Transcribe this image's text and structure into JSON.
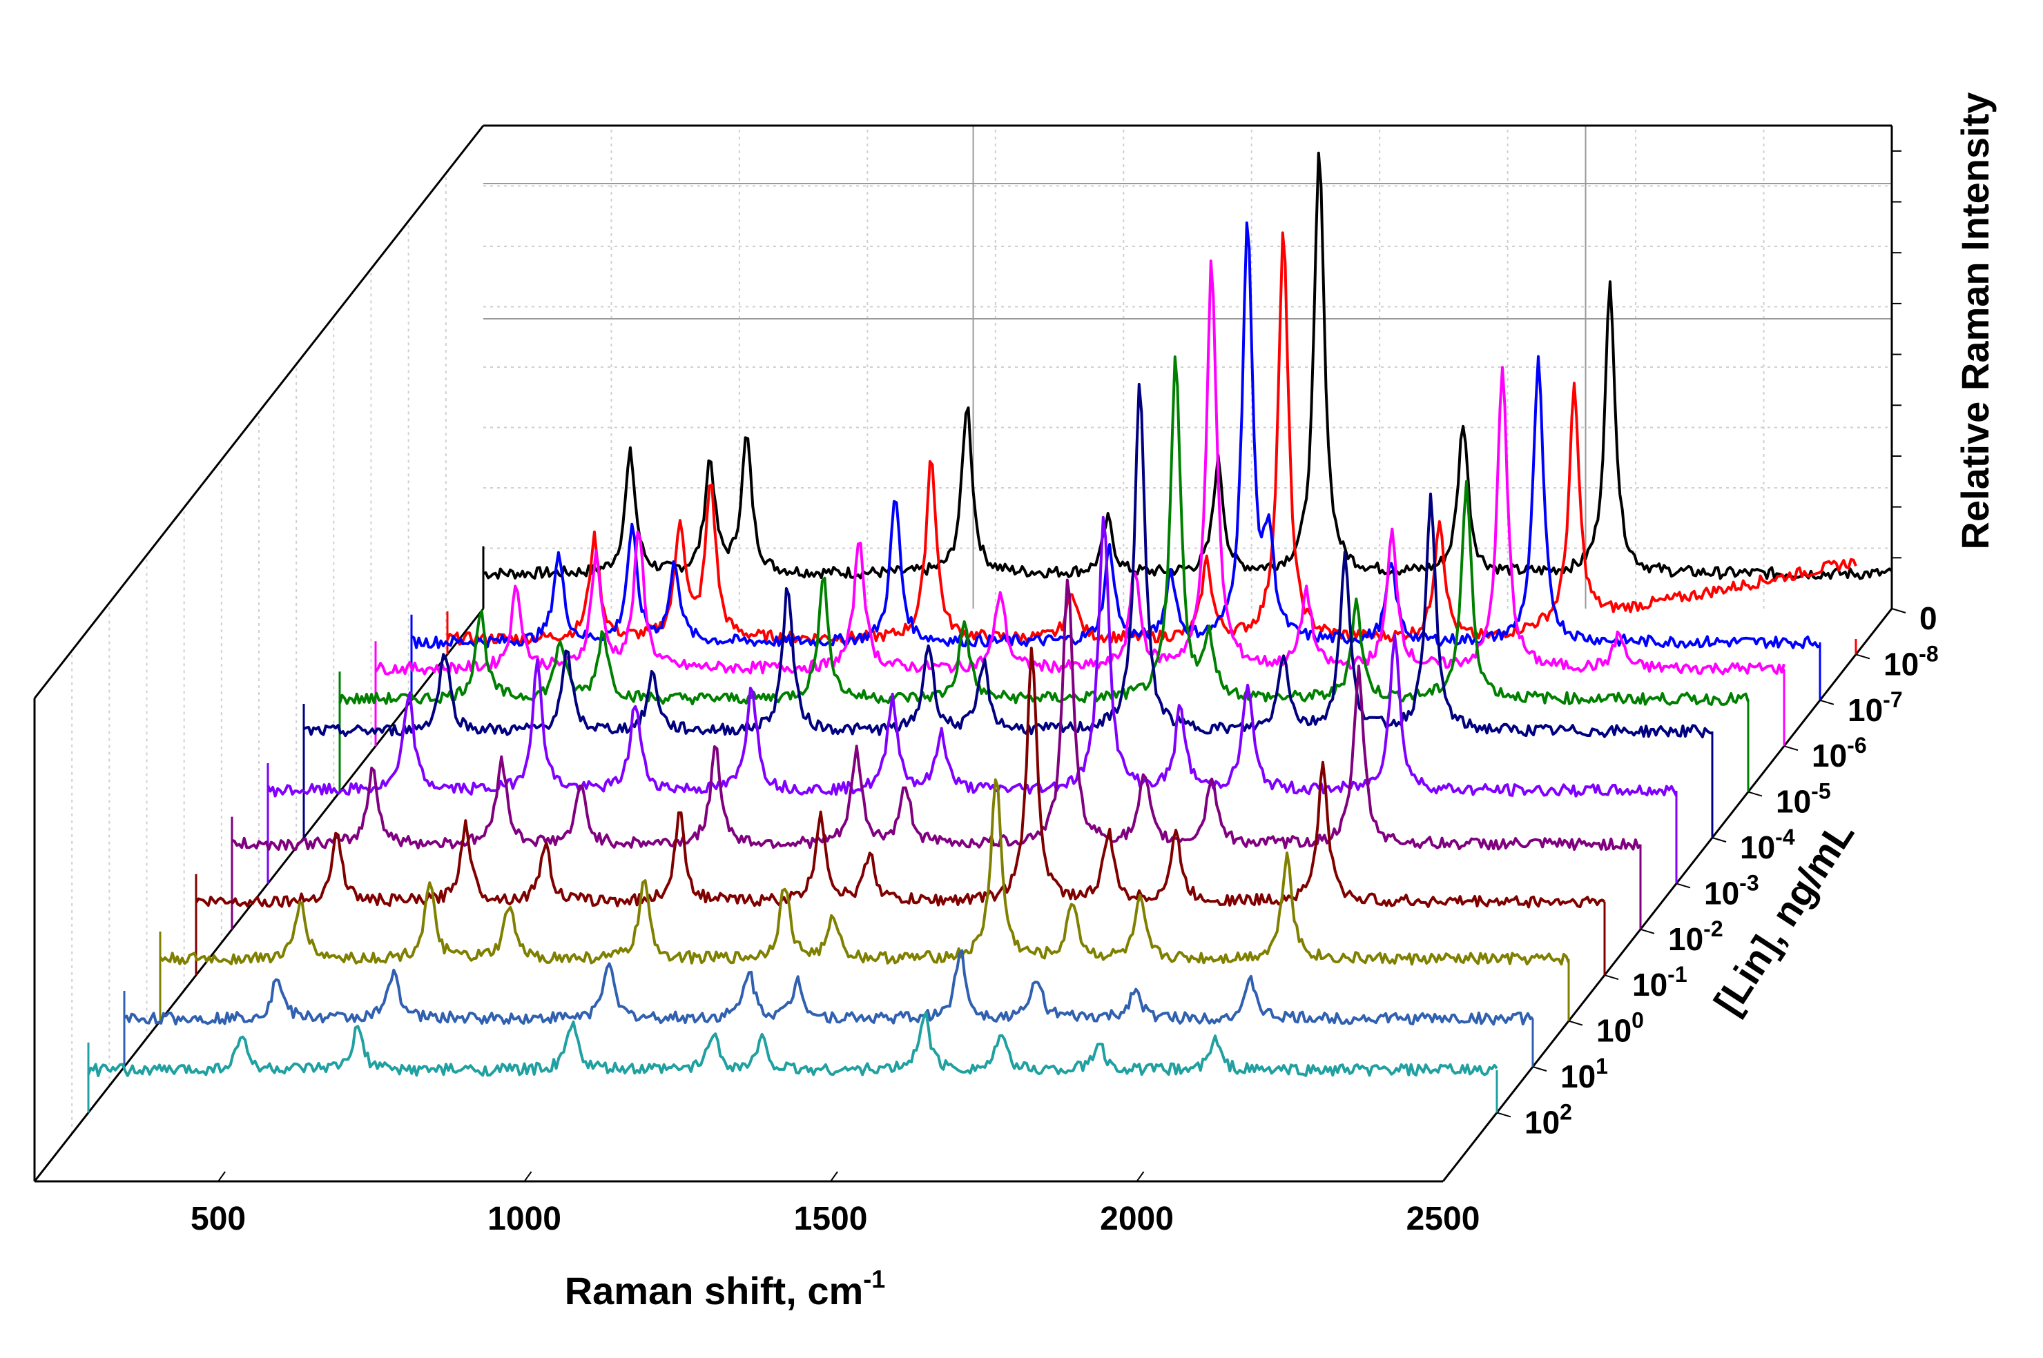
{
  "chart_data": {
    "type": "line",
    "subtype": "3d-waterfall",
    "title": "",
    "xlabel": "Raman shift, cm",
    "xlabel_superscript": "-1",
    "ylabel": "[Lin], ng/mL",
    "zlabel": "Relative Raman Intensity",
    "xlim": [
      200,
      2500
    ],
    "x_ticks": [
      "500",
      "1000",
      "1500",
      "2000",
      "2500"
    ],
    "x_tick_values": [
      500,
      1000,
      1500,
      2000,
      2500
    ],
    "depth_ticks": [
      {
        "base": "0",
        "sup": ""
      },
      {
        "base": "10",
        "sup": "-8"
      },
      {
        "base": "10",
        "sup": "-7"
      },
      {
        "base": "10",
        "sup": "-6"
      },
      {
        "base": "10",
        "sup": "-5"
      },
      {
        "base": "10",
        "sup": "-4"
      },
      {
        "base": "10",
        "sup": "-3"
      },
      {
        "base": "10",
        "sup": "-2"
      },
      {
        "base": "10",
        "sup": "-1"
      },
      {
        "base": "10",
        "sup": "0"
      },
      {
        "base": "10",
        "sup": "1"
      },
      {
        "base": "10",
        "sup": "2"
      }
    ],
    "grid": true,
    "series": [
      {
        "name": "0",
        "color": "#000000",
        "baseline_offset": 18,
        "peaks": [
          [
            440,
            62
          ],
          [
            570,
            58
          ],
          [
            630,
            70
          ],
          [
            990,
            88
          ],
          [
            1220,
            28
          ],
          [
            1400,
            58
          ],
          [
            1565,
            218
          ],
          [
            1800,
            78
          ],
          [
            2040,
            150
          ]
        ],
        "high_end_rise": 0
      },
      {
        "name": "10^-8",
        "color": "#ff0000",
        "baseline_offset": 8,
        "peaks": [
          [
            440,
            52
          ],
          [
            580,
            60
          ],
          [
            630,
            80
          ],
          [
            990,
            95
          ],
          [
            1220,
            25
          ],
          [
            1440,
            40
          ],
          [
            1565,
            210
          ],
          [
            1820,
            62
          ],
          [
            2040,
            120
          ]
        ],
        "high_end_rise": 40
      },
      {
        "name": "10^-7",
        "color": "#0000ff",
        "baseline_offset": 30,
        "peaks": [
          [
            440,
            45
          ],
          [
            560,
            58
          ],
          [
            630,
            40
          ],
          [
            990,
            75
          ],
          [
            1340,
            48
          ],
          [
            1440,
            35
          ],
          [
            1565,
            215
          ],
          [
            1600,
            50
          ],
          [
            1800,
            40
          ],
          [
            2040,
            145
          ]
        ],
        "high_end_rise": 0
      },
      {
        "name": "10^-6",
        "color": "#ff00ff",
        "baseline_offset": 40,
        "peaks": [
          [
            430,
            42
          ],
          [
            560,
            58
          ],
          [
            630,
            70
          ],
          [
            990,
            68
          ],
          [
            1220,
            40
          ],
          [
            1440,
            50
          ],
          [
            1565,
            210
          ],
          [
            1720,
            40
          ],
          [
            1860,
            70
          ],
          [
            2040,
            155
          ],
          [
            2230,
            18
          ]
        ],
        "high_end_rise": 0
      },
      {
        "name": "10^-5",
        "color": "#008000",
        "baseline_offset": 48,
        "peaks": [
          [
            430,
            45
          ],
          [
            560,
            30
          ],
          [
            630,
            35
          ],
          [
            990,
            62
          ],
          [
            1220,
            40
          ],
          [
            1565,
            175
          ],
          [
            1620,
            30
          ],
          [
            1860,
            50
          ],
          [
            2040,
            110
          ]
        ],
        "high_end_rise": 0
      },
      {
        "name": "10^-4",
        "color": "#000080",
        "baseline_offset": 55,
        "peaks": [
          [
            430,
            42
          ],
          [
            630,
            40
          ],
          [
            770,
            30
          ],
          [
            990,
            75
          ],
          [
            1220,
            45
          ],
          [
            1310,
            35
          ],
          [
            1565,
            180
          ],
          [
            1800,
            40
          ],
          [
            1900,
            90
          ],
          [
            2040,
            120
          ]
        ],
        "high_end_rise": 0
      },
      {
        "name": "10^-3",
        "color": "#8000ff",
        "baseline_offset": 48,
        "peaks": [
          [
            430,
            50
          ],
          [
            640,
            65
          ],
          [
            800,
            45
          ],
          [
            990,
            55
          ],
          [
            1220,
            48
          ],
          [
            1300,
            30
          ],
          [
            1565,
            145
          ],
          [
            1690,
            42
          ],
          [
            1800,
            55
          ],
          [
            2040,
            80
          ]
        ],
        "high_end_rise": 0
      },
      {
        "name": "10^-2",
        "color": "#800080",
        "baseline_offset": 44,
        "peaks": [
          [
            430,
            40
          ],
          [
            640,
            45
          ],
          [
            770,
            30
          ],
          [
            990,
            50
          ],
          [
            1220,
            48
          ],
          [
            1300,
            30
          ],
          [
            1565,
            140
          ],
          [
            1690,
            35
          ],
          [
            1800,
            35
          ],
          [
            2040,
            90
          ]
        ],
        "high_end_rise": 0
      },
      {
        "name": "10^-1",
        "color": "#800000",
        "baseline_offset": 38,
        "peaks": [
          [
            430,
            35
          ],
          [
            640,
            40
          ],
          [
            770,
            30
          ],
          [
            990,
            45
          ],
          [
            1220,
            45
          ],
          [
            1300,
            25
          ],
          [
            1565,
            130
          ],
          [
            1690,
            35
          ],
          [
            1800,
            35
          ],
          [
            2040,
            70
          ]
        ],
        "high_end_rise": 0
      },
      {
        "name": "10^0",
        "color": "#808000",
        "baseline_offset": 32,
        "peaks": [
          [
            430,
            30
          ],
          [
            640,
            38
          ],
          [
            770,
            28
          ],
          [
            990,
            40
          ],
          [
            1220,
            38
          ],
          [
            1300,
            22
          ],
          [
            1565,
            95
          ],
          [
            1690,
            30
          ],
          [
            1800,
            30
          ],
          [
            2040,
            55
          ]
        ],
        "high_end_rise": 0
      },
      {
        "name": "10^1",
        "color": "#3060b0",
        "baseline_offset": 25,
        "peaks": [
          [
            450,
            22
          ],
          [
            640,
            26
          ],
          [
            990,
            30
          ],
          [
            1220,
            25
          ],
          [
            1300,
            20
          ],
          [
            1565,
            35
          ],
          [
            1690,
            22
          ],
          [
            1850,
            16
          ],
          [
            2040,
            20
          ]
        ],
        "high_end_rise": 0
      },
      {
        "name": "10^2",
        "color": "#20a0a0",
        "baseline_offset": 22,
        "peaks": [
          [
            450,
            18
          ],
          [
            640,
            22
          ],
          [
            990,
            25
          ],
          [
            1220,
            20
          ],
          [
            1300,
            16
          ],
          [
            1565,
            30
          ],
          [
            1690,
            18
          ],
          [
            1850,
            14
          ],
          [
            2040,
            16
          ]
        ],
        "high_end_rise": 0
      }
    ]
  }
}
